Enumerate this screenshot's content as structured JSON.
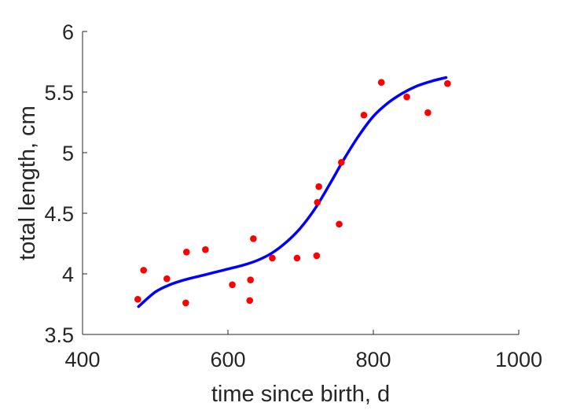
{
  "chart_data": {
    "type": "scatter",
    "xlabel": "time since birth, d",
    "ylabel": "total length, cm",
    "xlim": [
      400,
      1000
    ],
    "ylim": [
      3.5,
      6
    ],
    "xticks": [
      "400",
      "600",
      "800",
      "1000"
    ],
    "yticks": [
      "3.5",
      "4",
      "4.5",
      "5",
      "5.5",
      "6"
    ],
    "grid": false,
    "series": [
      {
        "kind": "points",
        "color": "#ff0000",
        "x": [
          476,
          484,
          516,
          542,
          543,
          569,
          606,
          630,
          631,
          635,
          661,
          695,
          722,
          723,
          725,
          753,
          756,
          787,
          811,
          846,
          875,
          902
        ],
        "y": [
          3.79,
          4.03,
          3.96,
          3.76,
          4.18,
          4.2,
          3.91,
          3.78,
          3.95,
          4.29,
          4.13,
          4.13,
          4.15,
          4.59,
          4.72,
          4.41,
          4.92,
          5.31,
          5.58,
          5.46,
          5.33,
          5.57
        ]
      },
      {
        "kind": "line",
        "color": "#0000ff",
        "x": [
          477,
          500,
          520,
          540,
          560,
          580,
          600,
          620,
          640,
          660,
          680,
          700,
          720,
          740,
          760,
          780,
          800,
          820,
          840,
          860,
          880,
          900
        ],
        "y": [
          3.73,
          3.85,
          3.91,
          3.95,
          3.98,
          4.01,
          4.04,
          4.07,
          4.11,
          4.17,
          4.26,
          4.38,
          4.54,
          4.74,
          4.95,
          5.14,
          5.3,
          5.41,
          5.49,
          5.55,
          5.59,
          5.62
        ]
      }
    ]
  }
}
